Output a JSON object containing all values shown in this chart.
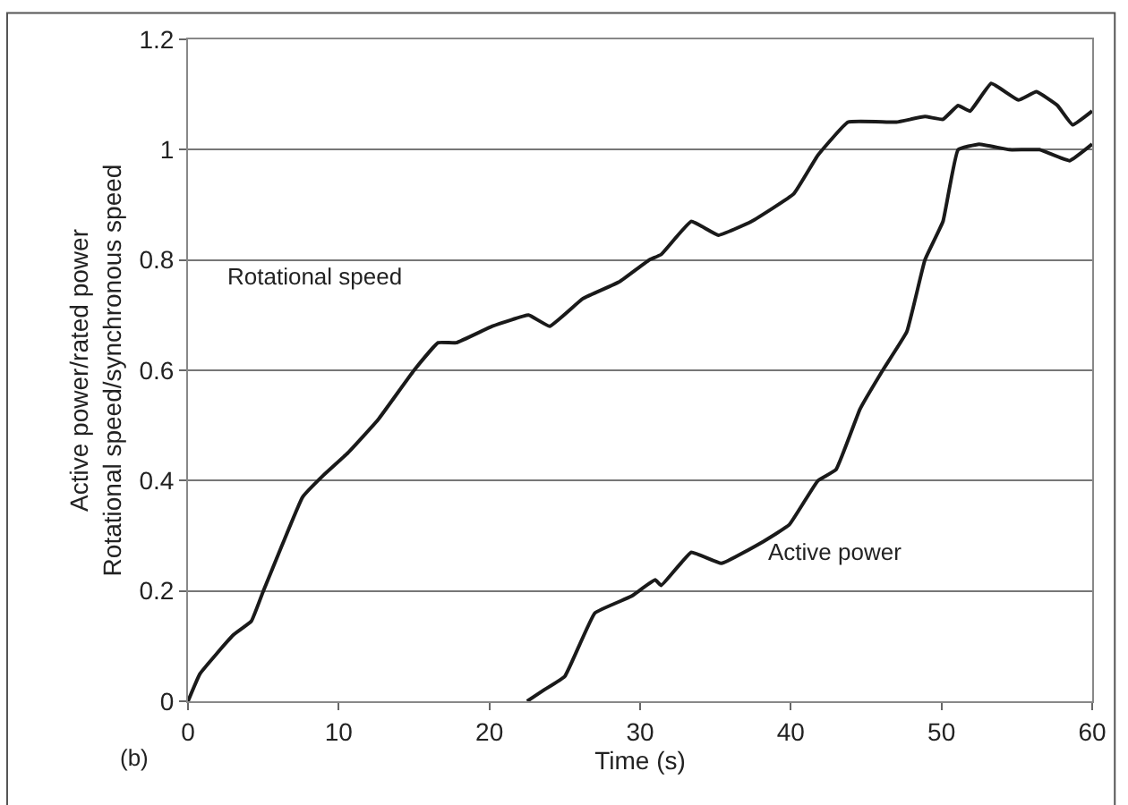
{
  "chart_data": {
    "type": "line",
    "xlabel": "Time (s)",
    "ylabel": "Active power/rated power\nRotational speed/synchronous speed",
    "xlim": [
      0,
      60
    ],
    "xticks": [
      0,
      10,
      20,
      30,
      40,
      50,
      60
    ],
    "ylim": [
      0,
      1.2
    ],
    "yticks": [
      0,
      0.2,
      0.4,
      0.6,
      0.8,
      1,
      1.2
    ],
    "grid": "y",
    "legend": false,
    "marker": "none",
    "line_style": "solid",
    "series": [
      {
        "name": "Rotational speed",
        "color": "#1a1a1a",
        "x": [
          0,
          0.8,
          3.0,
          4.2,
          5.0,
          6.2,
          7.6,
          9.0,
          10.6,
          12.6,
          15.0,
          16.6,
          17.8,
          20.2,
          22.6,
          24.0,
          26.2,
          28.6,
          30.6,
          31.4,
          33.4,
          35.2,
          37.4,
          40.2,
          41.8,
          43.8,
          47.0,
          48.9,
          50.1,
          51.1,
          51.9,
          53.3,
          55.1,
          56.3,
          57.7,
          58.7,
          60
        ],
        "values": [
          0,
          0.05,
          0.12,
          0.145,
          0.2,
          0.28,
          0.37,
          0.41,
          0.45,
          0.51,
          0.6,
          0.65,
          0.65,
          0.68,
          0.7,
          0.68,
          0.73,
          0.76,
          0.8,
          0.81,
          0.87,
          0.845,
          0.87,
          0.92,
          0.99,
          1.05,
          1.05,
          1.06,
          1.055,
          1.08,
          1.07,
          1.12,
          1.09,
          1.105,
          1.08,
          1.045,
          1.07
        ]
      },
      {
        "name": "Active power",
        "color": "#1a1a1a",
        "x": [
          22.5,
          23.6,
          25.0,
          27.0,
          29.4,
          31.0,
          31.4,
          33.4,
          35.4,
          38.2,
          39.9,
          41.8,
          43.0,
          44.6,
          46.1,
          47.7,
          48.9,
          50.1,
          51.1,
          52.5,
          54.5,
          56.5,
          58.5,
          60
        ],
        "values": [
          0,
          0.02,
          0.045,
          0.16,
          0.19,
          0.22,
          0.21,
          0.27,
          0.25,
          0.29,
          0.32,
          0.4,
          0.42,
          0.53,
          0.6,
          0.67,
          0.8,
          0.87,
          1.0,
          1.01,
          1.0,
          1.0,
          0.98,
          1.01
        ]
      }
    ],
    "annotations": [
      "(b)"
    ]
  }
}
